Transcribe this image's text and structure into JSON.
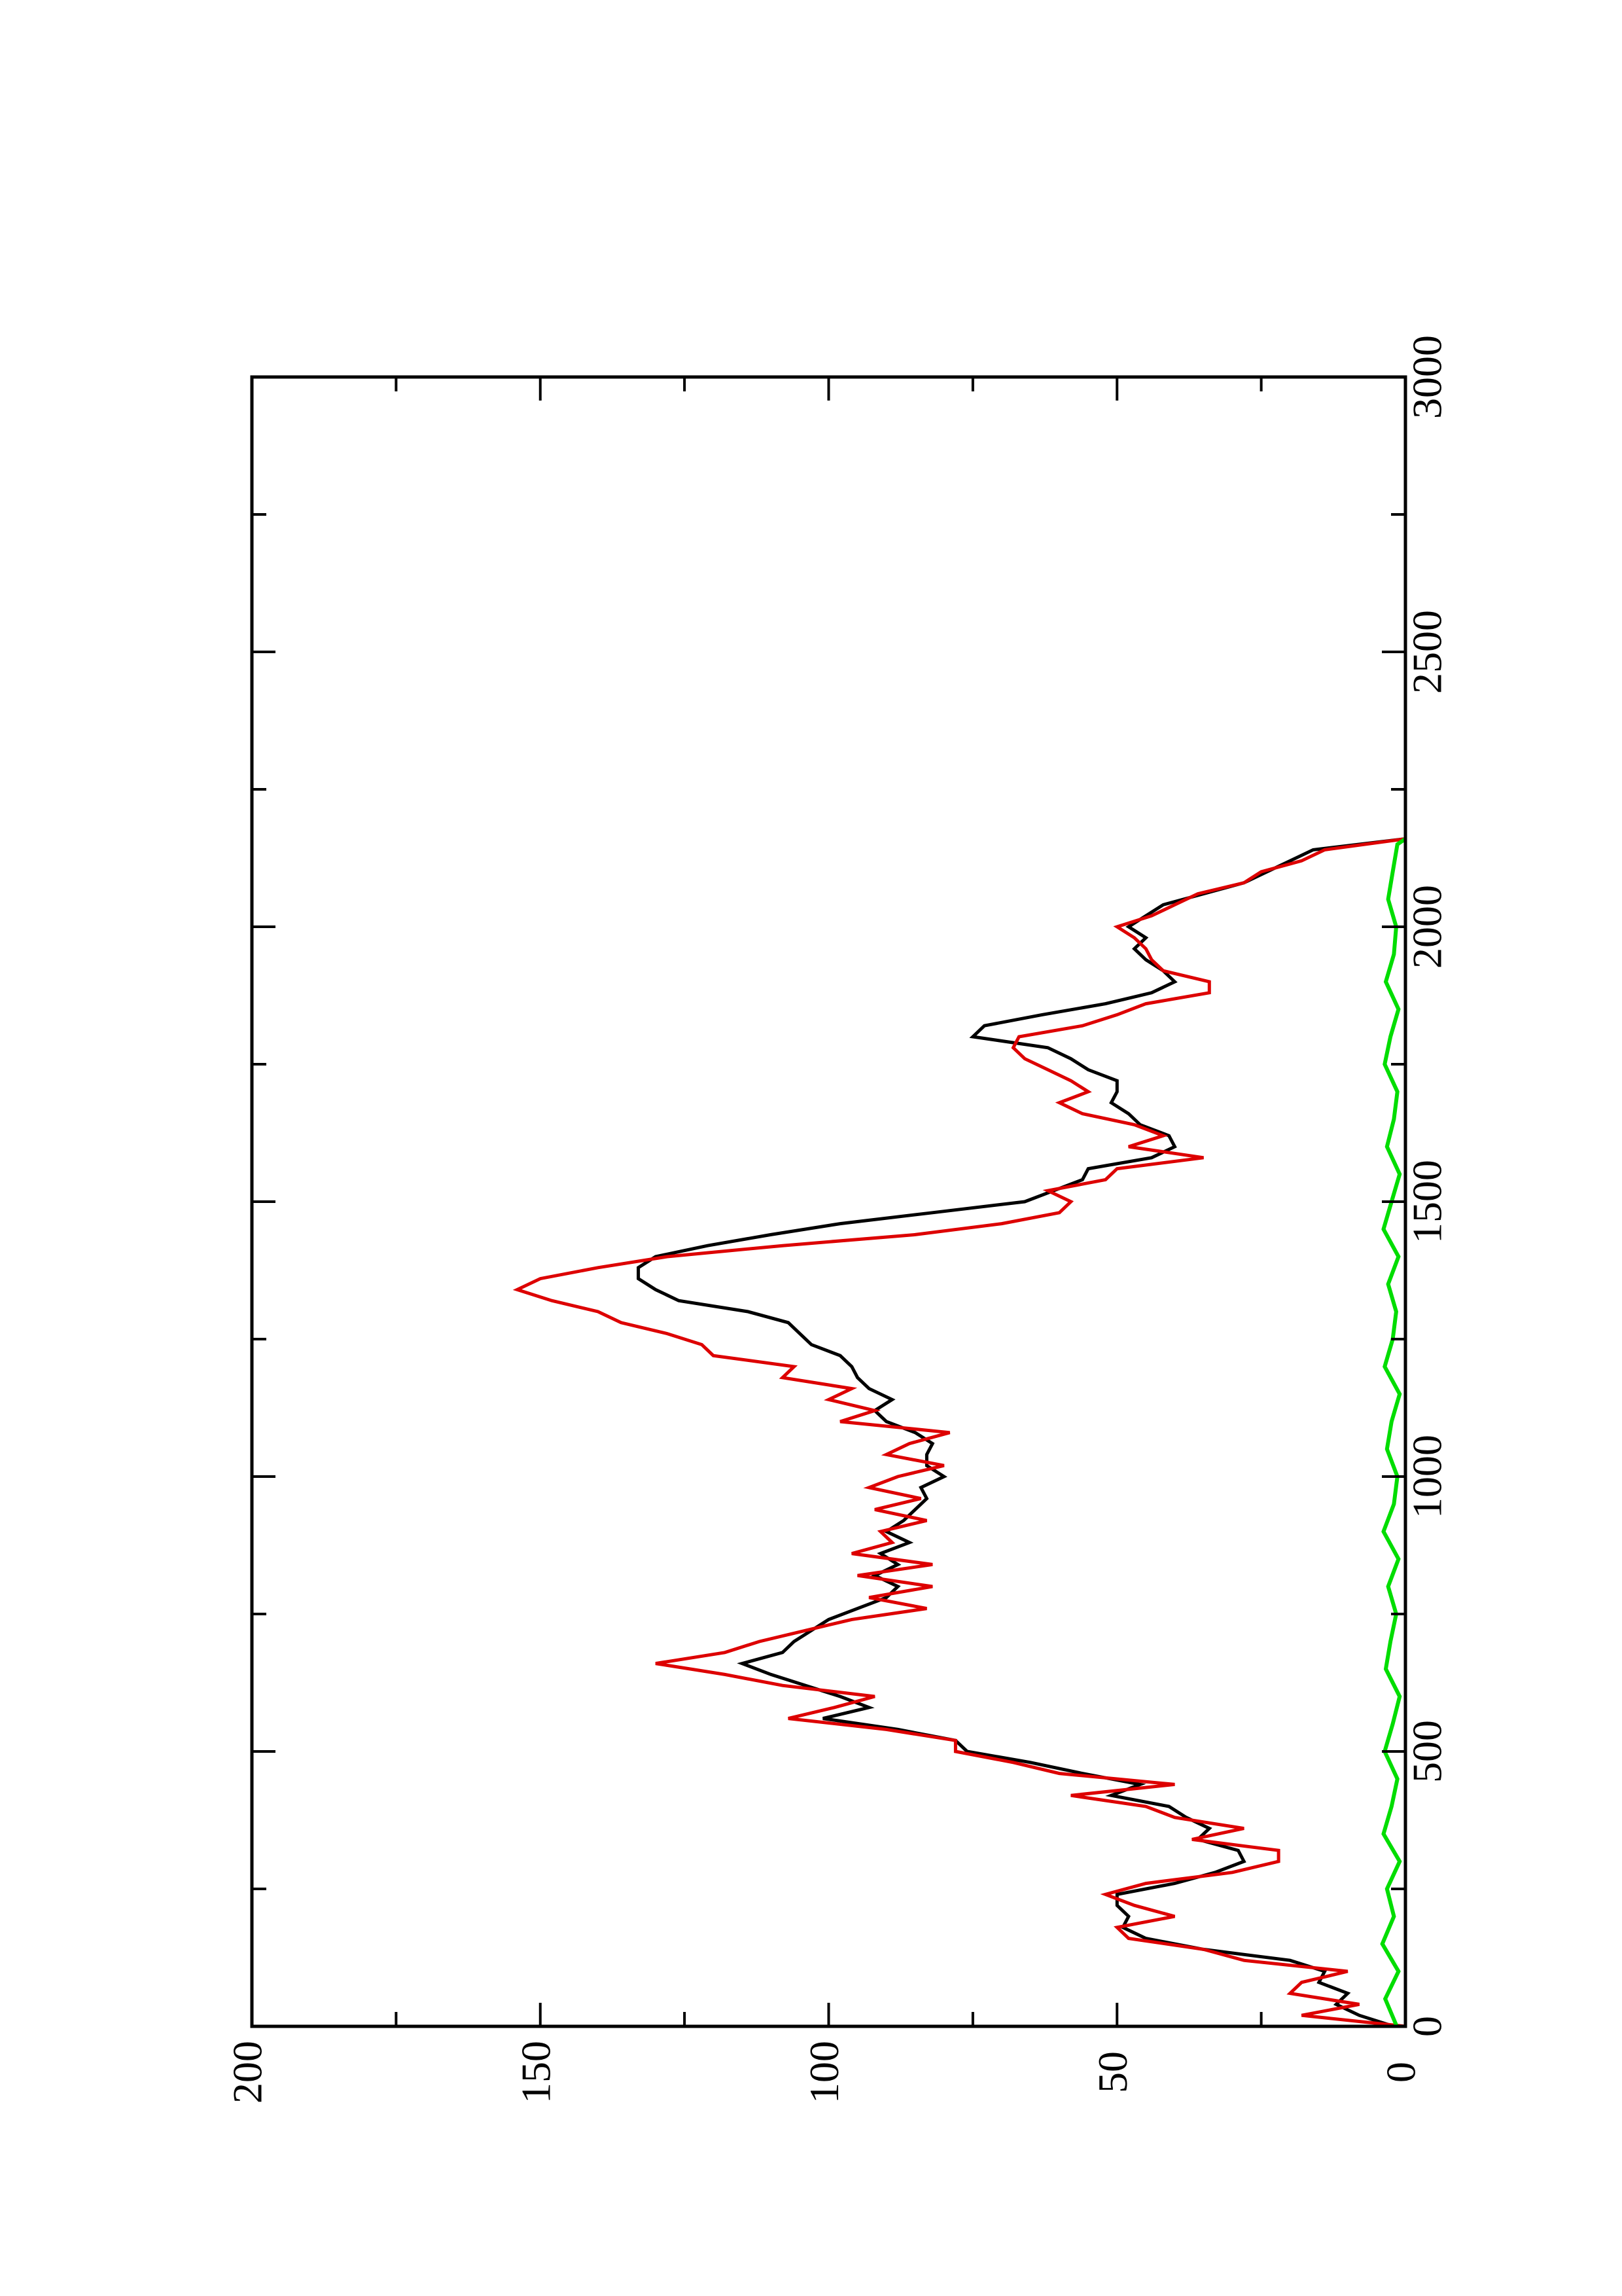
{
  "chart_data": {
    "type": "line",
    "orientation": "rotated-90-counterclockwise",
    "title": "",
    "xlabel": "",
    "ylabel": "",
    "xlim": [
      0,
      3000
    ],
    "ylim": [
      0,
      200
    ],
    "x_ticks": [
      0,
      500,
      1000,
      1500,
      2000,
      2500,
      3000
    ],
    "x_tick_labels": [
      "0",
      "500",
      "1000",
      "1500",
      "2000",
      "2500",
      "3000"
    ],
    "y_ticks": [
      0,
      50,
      100,
      150,
      200
    ],
    "y_tick_labels": [
      "0",
      "50",
      "100",
      "150",
      "200"
    ],
    "grid": false,
    "legend": "none",
    "series": [
      {
        "color": "#000000",
        "x": [
          0,
          20,
          40,
          60,
          80,
          100,
          120,
          140,
          160,
          180,
          200,
          220,
          240,
          260,
          280,
          300,
          320,
          340,
          360,
          380,
          400,
          420,
          440,
          460,
          480,
          500,
          520,
          540,
          560,
          580,
          600,
          620,
          640,
          660,
          680,
          700,
          720,
          740,
          760,
          780,
          800,
          820,
          840,
          860,
          880,
          900,
          920,
          940,
          960,
          980,
          1000,
          1020,
          1040,
          1060,
          1080,
          1100,
          1120,
          1140,
          1160,
          1180,
          1200,
          1220,
          1240,
          1260,
          1280,
          1300,
          1320,
          1340,
          1360,
          1380,
          1400,
          1420,
          1440,
          1460,
          1480,
          1500,
          1520,
          1540,
          1560,
          1580,
          1600,
          1620,
          1640,
          1660,
          1680,
          1700,
          1720,
          1740,
          1760,
          1780,
          1800,
          1820,
          1840,
          1860,
          1880,
          1900,
          1920,
          1940,
          1960,
          1980,
          2000,
          2020,
          2040,
          2060,
          2080,
          2100,
          2120,
          2140,
          2160
        ],
        "y": [
          2,
          8,
          12,
          10,
          15,
          14,
          20,
          35,
          45,
          49,
          48,
          50,
          50,
          40,
          33,
          28,
          29,
          36,
          34,
          38,
          41,
          51,
          46,
          56,
          65,
          76,
          78,
          88,
          101,
          93,
          98,
          104,
          110,
          115,
          108,
          106,
          103,
          100,
          95,
          90,
          88,
          92,
          88,
          91,
          86,
          90,
          87,
          85,
          83,
          84,
          80,
          83,
          83,
          82,
          85,
          90,
          92,
          89,
          93,
          95,
          96,
          98,
          103,
          105,
          107,
          114,
          126,
          130,
          133,
          133,
          130,
          121,
          110,
          98,
          82,
          66,
          61,
          56,
          55,
          44,
          40,
          41,
          46,
          48,
          51,
          50,
          50,
          55,
          58,
          62,
          75,
          73,
          63,
          52,
          44,
          40,
          42,
          45,
          47,
          45,
          48,
          45,
          42,
          35,
          28,
          24,
          20,
          16,
          0
        ]
      },
      {
        "color": "#dd0000",
        "x": [
          0,
          20,
          40,
          60,
          80,
          100,
          120,
          140,
          160,
          180,
          200,
          220,
          240,
          260,
          280,
          300,
          320,
          340,
          360,
          380,
          400,
          420,
          440,
          460,
          480,
          500,
          520,
          540,
          560,
          580,
          600,
          620,
          640,
          660,
          680,
          700,
          720,
          740,
          760,
          780,
          800,
          820,
          840,
          860,
          880,
          900,
          920,
          940,
          960,
          980,
          1000,
          1020,
          1040,
          1060,
          1080,
          1100,
          1120,
          1140,
          1160,
          1180,
          1200,
          1220,
          1240,
          1260,
          1280,
          1300,
          1320,
          1340,
          1360,
          1380,
          1400,
          1420,
          1440,
          1460,
          1480,
          1500,
          1520,
          1540,
          1560,
          1580,
          1600,
          1620,
          1640,
          1660,
          1680,
          1700,
          1720,
          1740,
          1760,
          1780,
          1800,
          1820,
          1840,
          1860,
          1880,
          1900,
          1920,
          1940,
          1960,
          1980,
          2000,
          2020,
          2040,
          2060,
          2080,
          2100,
          2120,
          2140,
          2160
        ],
        "y": [
          0,
          18,
          8,
          20,
          18,
          10,
          28,
          35,
          48,
          50,
          40,
          47,
          52,
          45,
          30,
          22,
          22,
          37,
          28,
          40,
          45,
          58,
          40,
          60,
          68,
          78,
          78,
          90,
          107,
          99,
          92,
          108,
          118,
          130,
          118,
          112,
          104,
          96,
          83,
          93,
          82,
          95,
          82,
          96,
          89,
          91,
          83,
          92,
          84,
          93,
          88,
          80,
          90,
          86,
          79,
          98,
          92,
          100,
          96,
          108,
          106,
          120,
          122,
          128,
          136,
          140,
          148,
          154,
          150,
          140,
          128,
          108,
          85,
          70,
          60,
          58,
          62,
          52,
          50,
          35,
          48,
          42,
          47,
          56,
          60,
          55,
          58,
          62,
          66,
          68,
          67,
          56,
          50,
          45,
          34,
          34,
          42,
          44,
          45,
          47,
          50,
          44,
          40,
          36,
          28,
          25,
          18,
          14,
          0
        ]
      },
      {
        "color": "#00dd00",
        "x": [
          0,
          50,
          100,
          150,
          200,
          250,
          300,
          350,
          400,
          450,
          500,
          550,
          600,
          650,
          700,
          750,
          800,
          850,
          900,
          950,
          1000,
          1050,
          1100,
          1150,
          1200,
          1250,
          1300,
          1350,
          1400,
          1450,
          1500,
          1550,
          1600,
          1650,
          1700,
          1750,
          1800,
          1850,
          1900,
          1950,
          2000,
          2050,
          2100,
          2150,
          2160
        ],
        "y": [
          1.5,
          3.5,
          1.2,
          4.0,
          2.0,
          3.2,
          1.0,
          3.8,
          2.4,
          1.4,
          3.6,
          2.2,
          1.0,
          3.4,
          2.6,
          1.6,
          3.0,
          1.2,
          3.8,
          2.0,
          1.4,
          3.2,
          2.4,
          1.0,
          3.6,
          2.2,
          1.6,
          3.0,
          1.2,
          3.8,
          2.4,
          1.0,
          3.2,
          2.0,
          1.4,
          3.6,
          2.6,
          1.2,
          3.4,
          2.0,
          1.6,
          3.0,
          2.2,
          1.4,
          0
        ]
      }
    ]
  }
}
